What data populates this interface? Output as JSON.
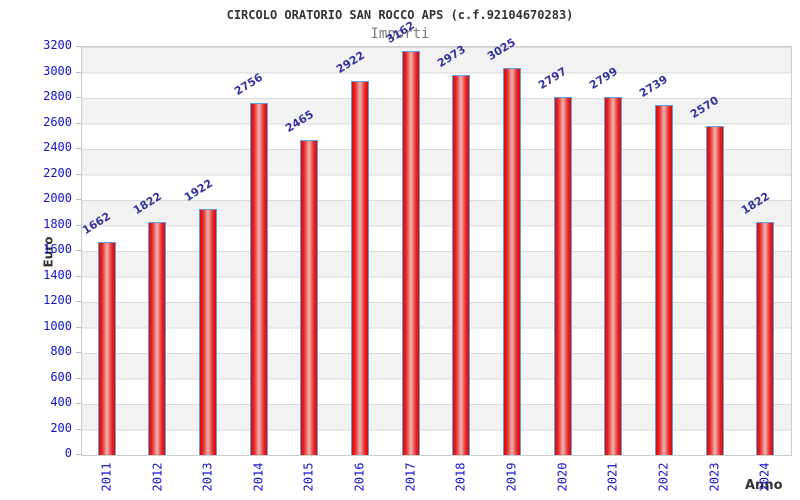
{
  "chart_data": {
    "type": "bar",
    "title": "CIRCOLO ORATORIO SAN ROCCO APS (c.f.92104670283)",
    "subtitle": "Importi",
    "xlabel": "Anno",
    "ylabel": "Euro",
    "categories": [
      "2011",
      "2012",
      "2013",
      "2014",
      "2015",
      "2016",
      "2017",
      "2018",
      "2019",
      "2020",
      "2021",
      "2022",
      "2023",
      "2024"
    ],
    "values": [
      1662,
      1822,
      1922,
      2756,
      2465,
      2922,
      3162,
      2973,
      3025,
      2797,
      2799,
      2739,
      2570,
      1822
    ],
    "ylim": [
      0,
      3200
    ],
    "y_tick_step": 200,
    "y_ticks": [
      0,
      200,
      400,
      600,
      800,
      1000,
      1200,
      1400,
      1600,
      1800,
      2000,
      2200,
      2400,
      2600,
      2800,
      3000,
      3200
    ],
    "grid": "horizontal gridlines with alternating gray/white bands",
    "legend": "none",
    "colors": {
      "bar_edge": "#cf1212",
      "bar_highlight": "#eab4b0",
      "bar_border": "#5ea0e6",
      "tick_label": "#1414cc",
      "value_label": "#3333a0",
      "band_gray": "#f2f2f2",
      "gridline": "#dadada",
      "title": "#333333",
      "subtitle": "#7d7d7d",
      "axis_label": "#333333"
    }
  }
}
